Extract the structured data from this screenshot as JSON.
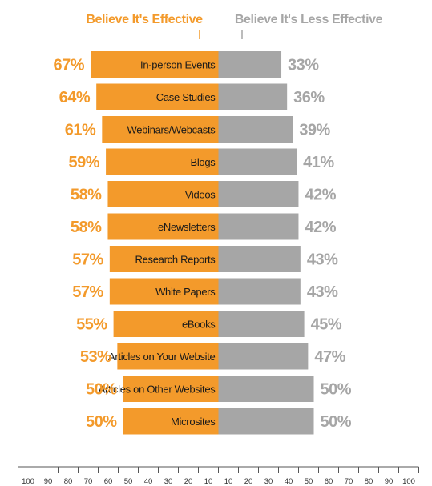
{
  "chart_data": {
    "type": "bar",
    "orientation": "horizontal-diverging",
    "legend": {
      "effective": "Believe It's Effective",
      "less_effective": "Believe It's Less Effective",
      "placement": "top"
    },
    "categories": [
      "In-person Events",
      "Case Studies",
      "Webinars/Webcasts",
      "Blogs",
      "Videos",
      "eNewsletters",
      "Research Reports",
      "White Papers",
      "eBooks",
      "Articles on Your Website",
      "Articles on Other Websites",
      "Microsites"
    ],
    "series": [
      {
        "name": "Believe It's Effective",
        "values": [
          67,
          64,
          61,
          59,
          58,
          58,
          57,
          57,
          55,
          53,
          50,
          50
        ],
        "labels": [
          "67%",
          "64%",
          "61%",
          "59%",
          "58%",
          "58%",
          "57%",
          "57%",
          "55%",
          "53%",
          "50%",
          "50%"
        ],
        "color": "#f39a2b",
        "direction": "left"
      },
      {
        "name": "Believe It's Less Effective",
        "values": [
          33,
          36,
          39,
          41,
          42,
          42,
          43,
          43,
          45,
          47,
          50,
          50
        ],
        "labels": [
          "33%",
          "36%",
          "39%",
          "41%",
          "42%",
          "42%",
          "43%",
          "43%",
          "45%",
          "47%",
          "50%",
          "50%"
        ],
        "color": "#a6a6a6",
        "direction": "right"
      }
    ],
    "axis": {
      "range": [
        -100,
        100
      ],
      "ticks": [
        "100",
        "90",
        "80",
        "70",
        "60",
        "50",
        "40",
        "30",
        "20",
        "10",
        "10",
        "20",
        "30",
        "40",
        "50",
        "60",
        "70",
        "80",
        "90",
        "100"
      ]
    },
    "grid": false
  }
}
